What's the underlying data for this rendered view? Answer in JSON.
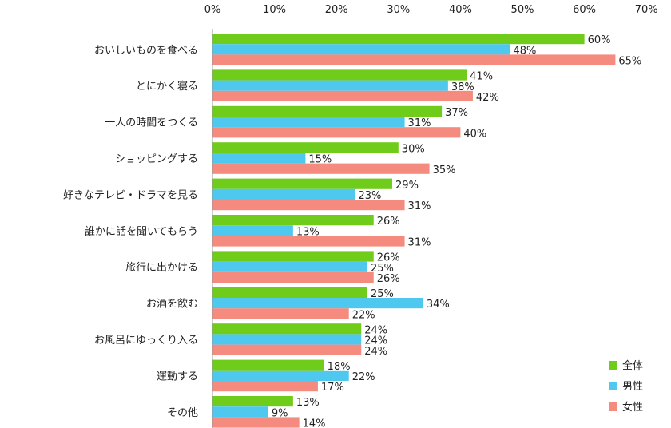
{
  "chart_data": {
    "type": "bar",
    "orientation": "horizontal",
    "title": "",
    "xlabel": "",
    "ylabel": "",
    "xlim": [
      0,
      70
    ],
    "x_ticks": [
      "0%",
      "10%",
      "20%",
      "30%",
      "40%",
      "50%",
      "60%",
      "70%"
    ],
    "x_axis_position": "top",
    "grid": false,
    "legend_position": "bottom-right",
    "unit": "%",
    "categories": [
      "おいしいものを食べる",
      "とにかく寝る",
      "一人の時間をつくる",
      "ショッピングする",
      "好きなテレビ・ドラマを見る",
      "誰かに話を聞いてもらう",
      "旅行に出かける",
      "お酒を飲む",
      "お風呂にゆっくり入る",
      "運動する",
      "その他"
    ],
    "series": [
      {
        "name": "全体",
        "color": "#6fcc1a",
        "values": [
          60,
          41,
          37,
          30,
          29,
          26,
          26,
          25,
          24,
          18,
          13
        ]
      },
      {
        "name": "男性",
        "color": "#4fc8f0",
        "values": [
          48,
          38,
          31,
          15,
          23,
          13,
          25,
          34,
          24,
          22,
          9
        ]
      },
      {
        "name": "女性",
        "color": "#f48b7e",
        "values": [
          65,
          42,
          40,
          35,
          31,
          31,
          26,
          22,
          24,
          17,
          14
        ]
      }
    ]
  }
}
